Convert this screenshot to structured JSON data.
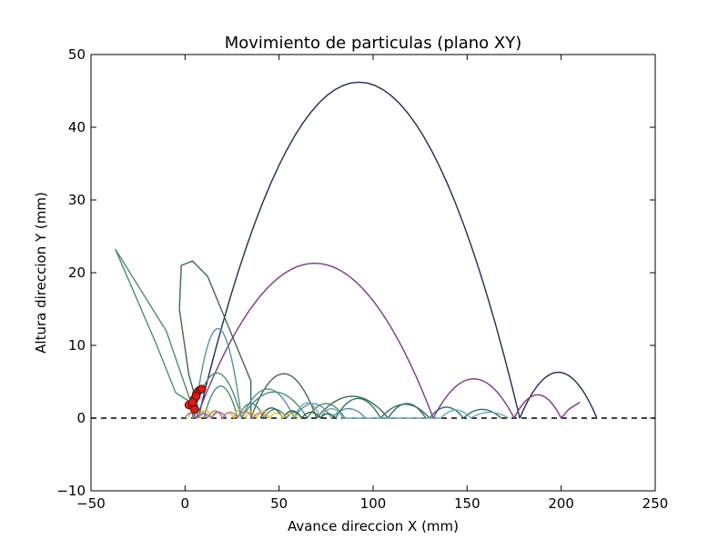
{
  "chart_data": {
    "type": "line",
    "title": "Movimiento de particulas (plano XY)",
    "xlabel": "Avance direccion X (mm)",
    "ylabel": "Altura direccion Y (mm)",
    "xlim": [
      -50,
      250
    ],
    "ylim": [
      -10,
      50
    ],
    "xticks": [
      -50,
      0,
      50,
      100,
      150,
      200,
      250
    ],
    "yticks": [
      -10,
      0,
      10,
      20,
      30,
      40,
      50
    ],
    "xtick_labels": [
      "−50",
      "0",
      "50",
      "100",
      "150",
      "200",
      "250"
    ],
    "ytick_labels": [
      "−10",
      "0",
      "10",
      "20",
      "30",
      "40",
      "50"
    ],
    "grid": false,
    "reference_line": {
      "y": 0,
      "style": "dashed",
      "color": "#000000"
    },
    "series": [
      {
        "color": "#1f2d52",
        "arcs": [
          [
            7,
            178,
            46.2
          ],
          [
            178,
            219,
            6.3
          ]
        ]
      },
      {
        "color": "#7a3a86",
        "arcs": [
          [
            6,
            132,
            21.3
          ],
          [
            132,
            175,
            5.4
          ],
          [
            175,
            200,
            3.2
          ]
        ],
        "tail": [
          [
            200,
            0
          ],
          [
            204,
            1.2
          ],
          [
            210,
            2.2
          ]
        ]
      },
      {
        "color": "#3e6b4a",
        "points": [
          [
            8,
            0.5
          ],
          [
            2,
            6
          ],
          [
            -3,
            15
          ],
          [
            -2,
            21
          ],
          [
            4,
            21.6
          ],
          [
            12,
            19.5
          ],
          [
            24,
            12
          ],
          [
            35,
            5.1
          ]
        ],
        "arcs": [
          [
            35,
            70,
            6.1
          ],
          [
            70,
            108,
            3.0
          ],
          [
            108,
            128,
            2.0
          ]
        ]
      },
      {
        "color": "#4e8f67",
        "points": [
          [
            6,
            1
          ],
          [
            2,
            3
          ],
          [
            -10,
            12
          ],
          [
            -37,
            23.2
          ],
          [
            -35,
            22
          ],
          [
            -25,
            16
          ],
          [
            -15,
            10
          ],
          [
            -5,
            3.5
          ],
          [
            4,
            2
          ]
        ],
        "arcs": [
          [
            4,
            30,
            6.2
          ],
          [
            30,
            65,
            3.6
          ],
          [
            65,
            85,
            2.0
          ]
        ]
      },
      {
        "color": "#5a8fa3",
        "arcs": [
          [
            5,
            30,
            12.3
          ],
          [
            30,
            58,
            4.0
          ],
          [
            58,
            78,
            2.0
          ],
          [
            78,
            96,
            1.3
          ]
        ]
      },
      {
        "color": "#4a8a80",
        "arcs": [
          [
            10,
            28,
            4.4
          ],
          [
            28,
            42,
            2.0
          ],
          [
            42,
            54,
            1.2
          ],
          [
            54,
            62,
            0.8
          ]
        ]
      },
      {
        "color": "#2f6f77",
        "arcs": [
          [
            80,
            104,
            2.7
          ],
          [
            104,
            130,
            1.9
          ],
          [
            130,
            148,
            1.5
          ],
          [
            148,
            168,
            1.2
          ]
        ]
      },
      {
        "color": "#6fa6ad",
        "arcs": [
          [
            58,
            72,
            2.1
          ],
          [
            72,
            84,
            1.3
          ],
          [
            136,
            152,
            1.1
          ],
          [
            152,
            172,
            0.8
          ]
        ]
      },
      {
        "color": "#2e5e3e",
        "arcs": [
          [
            40,
            52,
            1.4
          ],
          [
            52,
            62,
            1.0
          ],
          [
            62,
            72,
            0.8
          ],
          [
            72,
            80,
            0.6
          ]
        ]
      },
      {
        "color": "#e2c23a",
        "arcs": [
          [
            2,
            8,
            1.6
          ],
          [
            8,
            14,
            1.1
          ],
          [
            14,
            20,
            0.9
          ],
          [
            20,
            26,
            0.7
          ],
          [
            26,
            32,
            1.2
          ],
          [
            32,
            38,
            0.8
          ],
          [
            38,
            45,
            1.0
          ],
          [
            45,
            52,
            0.7
          ],
          [
            52,
            60,
            0.6
          ]
        ]
      },
      {
        "color": "#b57a8a",
        "arcs": [
          [
            4,
            12,
            0.9
          ],
          [
            12,
            20,
            1.0
          ],
          [
            20,
            28,
            0.8
          ],
          [
            28,
            36,
            0.9
          ],
          [
            36,
            44,
            0.7
          ]
        ]
      },
      {
        "color": "#9a6b9e",
        "arcs": [
          [
            0,
            6,
            0.7
          ],
          [
            6,
            14,
            0.6
          ],
          [
            14,
            22,
            0.8
          ]
        ]
      }
    ],
    "particles": {
      "fill": "#e01b12",
      "stroke": "#5a1010",
      "points": [
        [
          2,
          1.8
        ],
        [
          4,
          1.6
        ],
        [
          5,
          2.7
        ],
        [
          6,
          3.3
        ],
        [
          7,
          3.7
        ],
        [
          8,
          3.9
        ],
        [
          9,
          4.0
        ],
        [
          5,
          1.2
        ],
        [
          6,
          3.0
        ],
        [
          4,
          2.2
        ]
      ]
    },
    "colors": {
      "axes": "#000000",
      "background": "#ffffff"
    }
  }
}
